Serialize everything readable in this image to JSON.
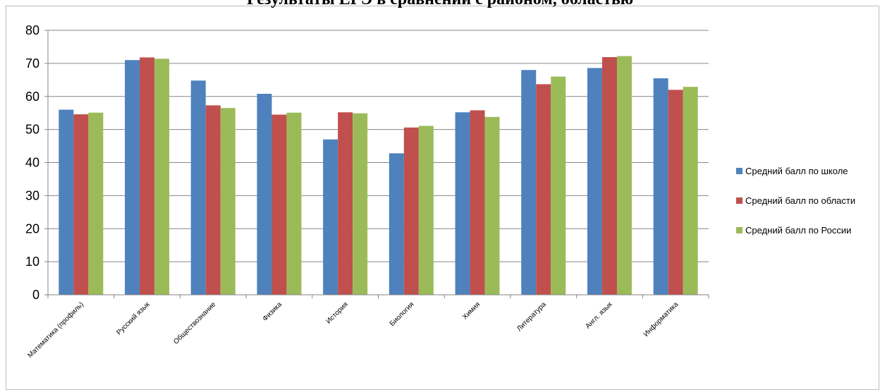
{
  "chart_data": {
    "type": "bar",
    "title": "Результаты ЕГЭ в сравнении с районом, областью",
    "xlabel": "",
    "ylabel": "",
    "ylim": [
      0,
      80
    ],
    "yticks": [
      0,
      10,
      20,
      30,
      40,
      50,
      60,
      70,
      80
    ],
    "grid": true,
    "legend_position": "right",
    "categories": [
      "Математика (профиль)",
      "Русский язык",
      "Обществознание",
      "Физика",
      "История",
      "Биология",
      "Химия",
      "Литература",
      "Англ. язык",
      "Информатика"
    ],
    "series": [
      {
        "name": "Средний балл по школе",
        "color": "#4f81bd",
        "values": [
          56,
          71,
          64.8,
          60.8,
          47,
          42.8,
          55.2,
          68,
          68.6,
          65.5
        ]
      },
      {
        "name": "Средний балл по области",
        "color": "#c0504d",
        "values": [
          54.6,
          71.8,
          57.3,
          54.5,
          55.2,
          50.6,
          55.8,
          63.7,
          71.9,
          62
        ]
      },
      {
        "name": "Средний балл по России",
        "color": "#9bbb59",
        "values": [
          55.1,
          71.4,
          56.5,
          55.1,
          54.9,
          51.1,
          53.8,
          66,
          72.2,
          62.9
        ]
      }
    ]
  }
}
